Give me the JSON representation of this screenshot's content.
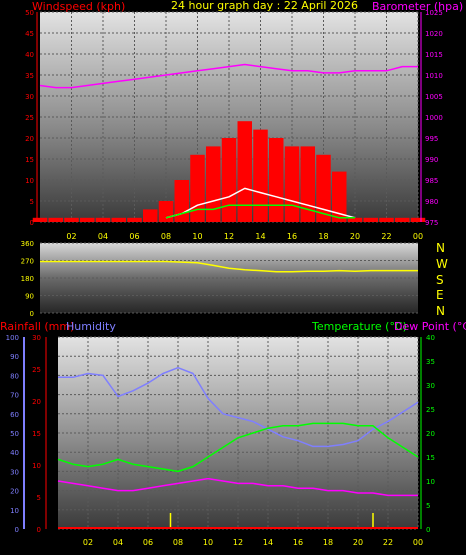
{
  "header": {
    "left_label": "Windspeed (kph)",
    "title": "24 hour graph day : 22 April 2026",
    "right_label": "Barometer (hpa)"
  },
  "bottom_labels": {
    "rainfall": "Rainfall (mm)",
    "humidity": "Humidity",
    "temperature": "Temperature (°C)",
    "dewpoint": "Dew Point (°C)"
  },
  "compass": [
    "N",
    "W",
    "S",
    "E",
    "N"
  ],
  "colors": {
    "wind": "#ff0000",
    "gust": "#ffffff",
    "wind_avg": "#00ff00",
    "barometer": "#ff00ff",
    "direction": "#ffff00",
    "humidity": "#7f7fff",
    "temperature": "#00ff00",
    "dewpoint": "#ff00ff",
    "rain": "#ffff00"
  },
  "chart_data": [
    {
      "type": "line",
      "title": "24 hour graph day : 22 April 2026",
      "x_ticks": [
        "02",
        "04",
        "06",
        "08",
        "10",
        "12",
        "14",
        "16",
        "18",
        "20",
        "22",
        "00"
      ],
      "ylabel_left": "Windspeed (kph)",
      "ylim_left": [
        0,
        50
      ],
      "yticks_left": [
        0,
        5,
        10,
        15,
        20,
        25,
        30,
        35,
        40,
        45,
        50
      ],
      "ylabel_right": "Barometer (hpa)",
      "ylim_right": [
        975,
        1025
      ],
      "yticks_right": [
        975,
        980,
        985,
        990,
        995,
        1000,
        1005,
        1010,
        1015,
        1020,
        1025
      ],
      "series": [
        {
          "name": "Barometer (hpa)",
          "axis": "right",
          "x": [
            0,
            1,
            2,
            3,
            4,
            5,
            6,
            7,
            8,
            9,
            10,
            11,
            12,
            13,
            14,
            15,
            16,
            17,
            18,
            19,
            20,
            21,
            22,
            23,
            24
          ],
          "values": [
            1007.5,
            1007,
            1007,
            1007.5,
            1008,
            1008.5,
            1009,
            1009.5,
            1010,
            1010.5,
            1011,
            1011.5,
            1012,
            1012.5,
            1012,
            1011.5,
            1011,
            1011,
            1010.5,
            1010.5,
            1011,
            1011,
            1011,
            1012,
            1012
          ]
        },
        {
          "name": "Windspeed (kph)",
          "axis": "left",
          "x": [
            0,
            1,
            2,
            3,
            4,
            5,
            6,
            7,
            8,
            9,
            10,
            11,
            12,
            13,
            14,
            15,
            16,
            17,
            18,
            19,
            20,
            21,
            22,
            23,
            24
          ],
          "values": [
            1,
            1,
            1,
            1,
            1,
            1,
            1,
            3,
            5,
            10,
            16,
            18,
            20,
            24,
            22,
            20,
            18,
            18,
            16,
            12,
            1,
            1,
            1,
            1,
            1
          ]
        },
        {
          "name": "Wind gust",
          "axis": "left",
          "x": [
            8,
            9,
            10,
            11,
            12,
            13,
            14,
            15,
            16,
            17,
            18,
            19,
            20
          ],
          "values": [
            1,
            2,
            4,
            5,
            6,
            8,
            7,
            6,
            5,
            4,
            3,
            2,
            1
          ]
        },
        {
          "name": "Average wind",
          "axis": "left",
          "x": [
            8,
            9,
            10,
            11,
            12,
            13,
            14,
            15,
            16,
            17,
            18,
            19,
            20
          ],
          "values": [
            1,
            2,
            3,
            3,
            4,
            4,
            4,
            4,
            4,
            3,
            2,
            1,
            1
          ]
        }
      ]
    },
    {
      "type": "line",
      "x_ticks": [],
      "ylim": [
        0,
        360
      ],
      "yticks": [
        0,
        90,
        180,
        270,
        360
      ],
      "series": [
        {
          "name": "Wind direction",
          "x": [
            0,
            1,
            2,
            3,
            4,
            5,
            6,
            7,
            8,
            9,
            10,
            11,
            12,
            13,
            14,
            15,
            16,
            17,
            18,
            19,
            20,
            21,
            22,
            23,
            24
          ],
          "values": [
            265,
            265,
            265,
            265,
            265,
            265,
            265,
            265,
            265,
            262,
            258,
            245,
            230,
            222,
            218,
            212,
            212,
            215,
            215,
            218,
            215,
            218,
            218,
            218,
            218
          ]
        }
      ]
    },
    {
      "type": "line",
      "x_ticks": [
        "02",
        "04",
        "06",
        "08",
        "10",
        "12",
        "14",
        "16",
        "18",
        "20",
        "22",
        "00"
      ],
      "ylabel_left": "Rainfall (mm)",
      "ylim_left": [
        0,
        30
      ],
      "yticks_left": [
        0,
        5,
        10,
        15,
        20,
        25,
        30
      ],
      "humidity_ylim": [
        0,
        100
      ],
      "humidity_yticks": [
        0,
        10,
        20,
        30,
        40,
        50,
        60,
        70,
        80,
        90,
        100
      ],
      "ylabel_right": "Temperature (°C)",
      "ylim_right": [
        0,
        40
      ],
      "yticks_right": [
        0,
        5,
        10,
        15,
        20,
        25,
        30,
        35,
        40
      ],
      "series": [
        {
          "name": "Humidity",
          "axis": "humidity",
          "x": [
            0,
            1,
            2,
            3,
            4,
            5,
            6,
            7,
            8,
            9,
            10,
            11,
            12,
            13,
            14,
            15,
            16,
            17,
            18,
            19,
            20,
            21,
            22,
            23,
            24
          ],
          "values": [
            79,
            79,
            81,
            80,
            69,
            72,
            76,
            81,
            84,
            81,
            68,
            60,
            58,
            56,
            52,
            48,
            46,
            43,
            43,
            44,
            46,
            52,
            56,
            61,
            66
          ]
        },
        {
          "name": "Temperature (°C)",
          "axis": "right",
          "x": [
            0,
            1,
            2,
            3,
            4,
            5,
            6,
            7,
            8,
            9,
            10,
            11,
            12,
            13,
            14,
            15,
            16,
            17,
            18,
            19,
            20,
            21,
            22,
            23,
            24
          ],
          "values": [
            14.5,
            13.5,
            13,
            13.5,
            14.5,
            13.5,
            13,
            12.5,
            12,
            13,
            15,
            17,
            19,
            20,
            21,
            21.5,
            21.5,
            22,
            22,
            22,
            21.5,
            21.5,
            19,
            17,
            15
          ]
        },
        {
          "name": "Dew Point (°C)",
          "axis": "right",
          "x": [
            0,
            1,
            2,
            3,
            4,
            5,
            6,
            7,
            8,
            9,
            10,
            11,
            12,
            13,
            14,
            15,
            16,
            17,
            18,
            19,
            20,
            21,
            22,
            23,
            24
          ],
          "values": [
            10,
            9.5,
            9,
            8.5,
            8,
            8,
            8.5,
            9,
            9.5,
            10,
            10.5,
            10,
            9.5,
            9.5,
            9,
            9,
            8.5,
            8.5,
            8,
            8,
            7.5,
            7.5,
            7,
            7,
            7
          ]
        },
        {
          "name": "Rainfall (mm)",
          "axis": "left",
          "x": [
            0,
            24
          ],
          "values": [
            0,
            0
          ]
        }
      ],
      "rain_markers_x": [
        7.5,
        21
      ]
    }
  ]
}
